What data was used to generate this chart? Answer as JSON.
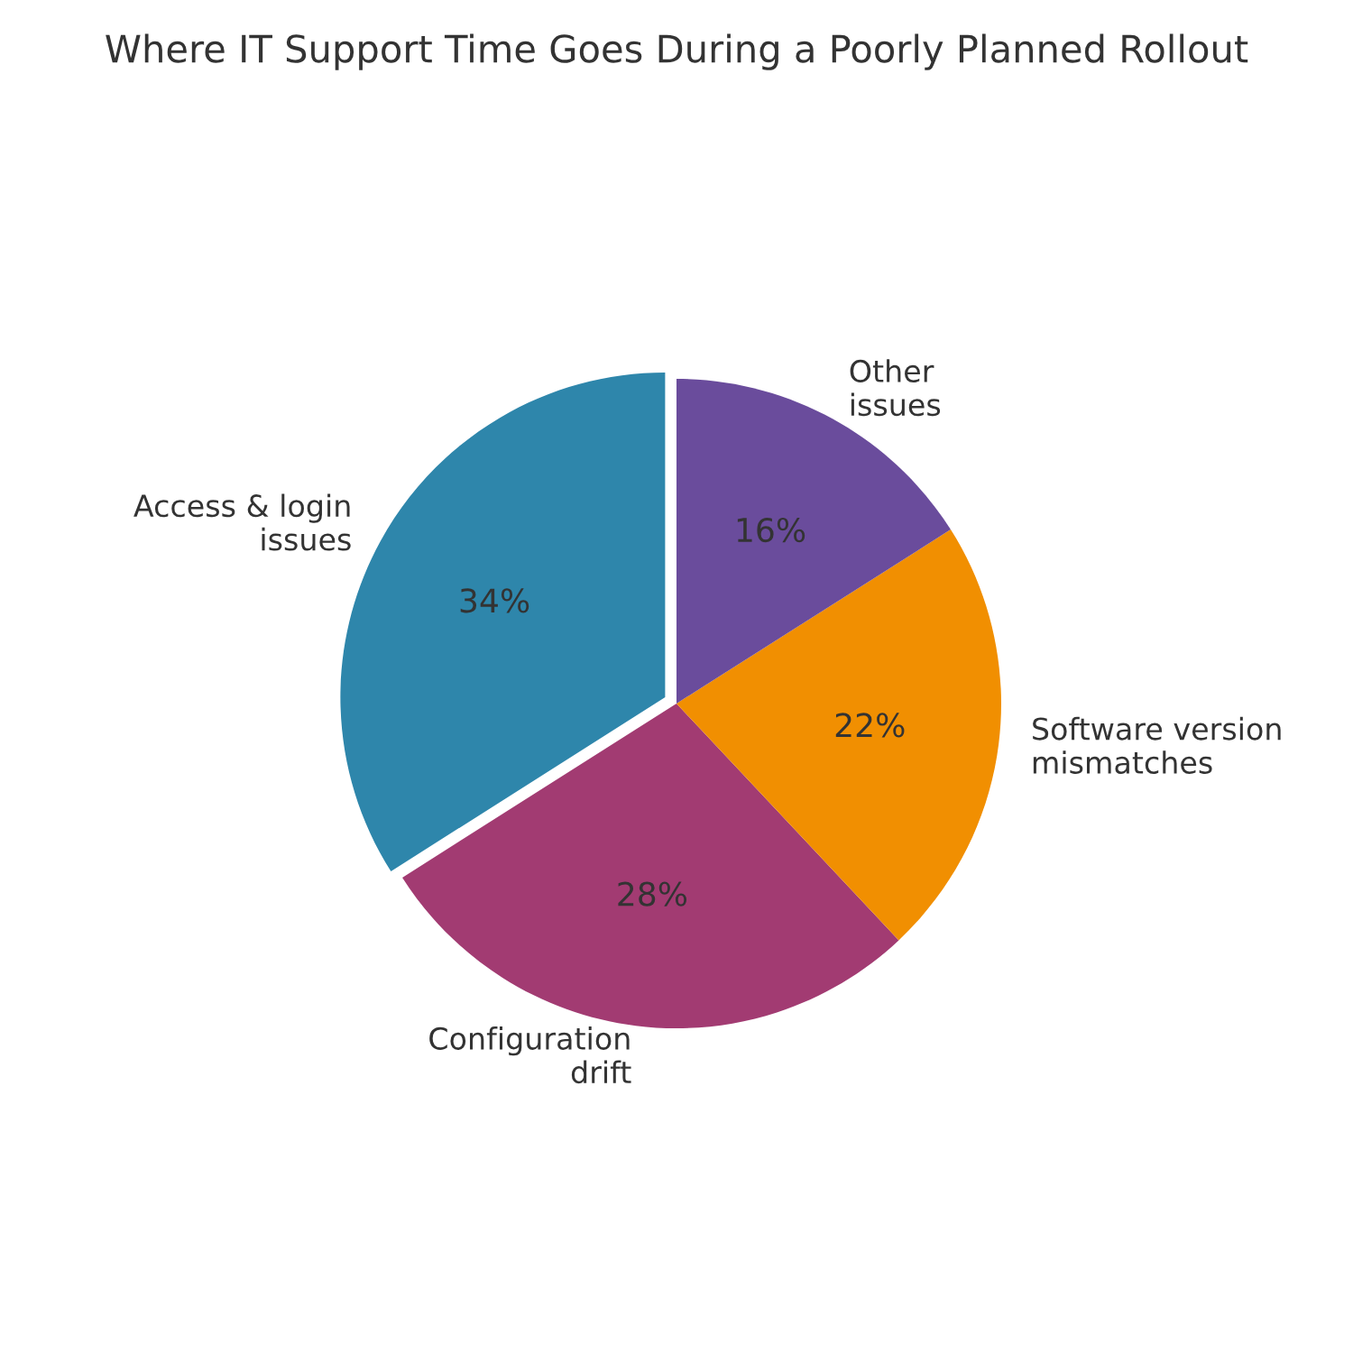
{
  "chart_data": {
    "type": "pie",
    "title": "Where IT Support Time Goes During a Poorly Planned Rollout",
    "categories": [
      "Access & login\nissues",
      "Configuration\ndrift",
      "Software version\nmismatches",
      "Other\nissues"
    ],
    "values": [
      34,
      28,
      22,
      16
    ],
    "colors": [
      "#2e86ab",
      "#a23b72",
      "#f18f01",
      "#6a4c9c"
    ],
    "value_labels": [
      "34%",
      "28%",
      "22%",
      "16%"
    ]
  }
}
